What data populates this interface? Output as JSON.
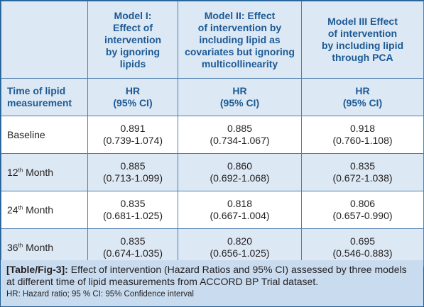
{
  "header": {
    "model1": [
      "Model I:",
      "Effect of",
      "intervention",
      "by ignoring",
      "lipids"
    ],
    "model2": [
      "Model II: Effect",
      "of intervention by",
      "including lipid as",
      "covariates but ignoring",
      "multicollinearity"
    ],
    "model3": [
      "Model III Effect",
      "of intervention",
      "by including lipid",
      "through PCA"
    ]
  },
  "subheader": {
    "time_label": [
      "Time of lipid",
      "measurement"
    ],
    "hr": "HR",
    "ci": "(95% CI)"
  },
  "rows": [
    {
      "label": "Baseline",
      "sup": "",
      "label_rest": "",
      "m1": {
        "hr": "0.891",
        "ci": "(0.739-1.074)"
      },
      "m2": {
        "hr": "0.885",
        "ci": "(0.734-1.067)"
      },
      "m3": {
        "hr": "0.918",
        "ci": "(0.760-1.108)"
      }
    },
    {
      "label": "12",
      "sup": "th",
      "label_rest": " Month",
      "m1": {
        "hr": "0.885",
        "ci": "(0.713-1.099)"
      },
      "m2": {
        "hr": "0.860",
        "ci": "(0.692-1.068)"
      },
      "m3": {
        "hr": "0.835",
        "ci": "(0.672-1.038)"
      }
    },
    {
      "label": "24",
      "sup": "th",
      "label_rest": " Month",
      "m1": {
        "hr": "0.835",
        "ci": "(0.681-1.025)"
      },
      "m2": {
        "hr": "0.818",
        "ci": "(0.667-1.004)"
      },
      "m3": {
        "hr": "0.806",
        "ci": "(0.657-0.990)"
      }
    },
    {
      "label": "36",
      "sup": "th",
      "label_rest": " Month",
      "m1": {
        "hr": "0.835",
        "ci": "(0.674-1.035)"
      },
      "m2": {
        "hr": "0.820",
        "ci": "(0.656-1.025)"
      },
      "m3": {
        "hr": "0.695",
        "ci": "(0.546-0.883)"
      }
    }
  ],
  "caption": {
    "label": "[Table/Fig-3]:",
    "text": " Effect of intervention (Hazard Ratios and 95% CI) assessed by three models at different time of lipid measurements from ACCORD BP Trial dataset.",
    "note": "HR: Hazard ratio; 95 % CI: 95% Confidence interval"
  },
  "colors": {
    "header_text": "#1d5a95",
    "shade": "#dce8f4",
    "caption_bg": "#c9dcef",
    "border": "#4f7fb0"
  }
}
